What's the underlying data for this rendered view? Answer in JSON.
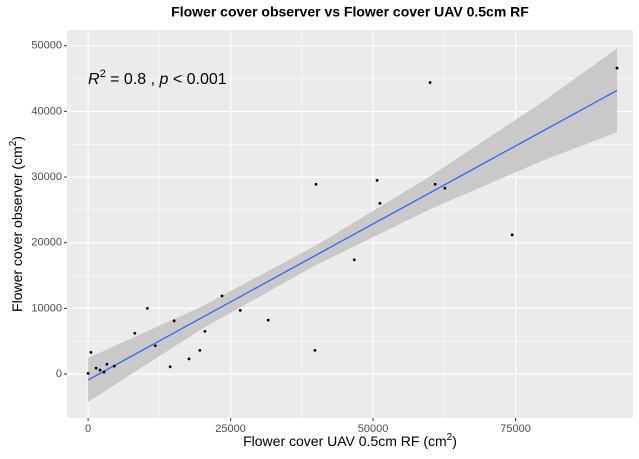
{
  "chart_data": {
    "type": "scatter",
    "title": "Flower cover observer vs Flower cover UAV 0.5cm RF",
    "x_label": {
      "text": "Flower cover UAV 0.5cm RF (cm",
      "sup": "2",
      "end": ")"
    },
    "y_label": {
      "text": "Flower cover observer (cm",
      "sup": "2",
      "end": ")"
    },
    "annotation": {
      "r": "R",
      "sup": "2",
      "mid": " = 0.8 , ",
      "p": "p",
      "end": " < 0.001"
    },
    "x": [
      0,
      500,
      1400,
      2100,
      2800,
      3300,
      4600,
      8200,
      10400,
      11800,
      14400,
      15100,
      17700,
      19600,
      20500,
      23500,
      26700,
      31600,
      39800,
      40000,
      46700,
      50700,
      51200,
      60000,
      60900,
      62600,
      74400,
      92800
    ],
    "values": [
      100,
      3300,
      900,
      600,
      300,
      1500,
      1200,
      6200,
      10000,
      4300,
      1100,
      8100,
      2300,
      3600,
      6500,
      11900,
      9700,
      8200,
      3600,
      28900,
      17400,
      29500,
      26000,
      44400,
      28900,
      28300,
      21200,
      46600
    ],
    "point_color": "#000000",
    "fit": {
      "color": "#3366FF",
      "x": [
        0,
        92800
      ],
      "y": [
        -900,
        43200
      ]
    },
    "band": {
      "color": "#c9c9c9",
      "x": [
        0,
        20000,
        40000,
        60000,
        80000,
        92800
      ],
      "lower": [
        -4250,
        6900,
        16600,
        25100,
        32600,
        36800
      ],
      "upper": [
        2450,
        10300,
        19600,
        30100,
        41600,
        49600
      ]
    },
    "xlim": [
      -3700,
      95600
    ],
    "ylim": [
      -6700,
      52400
    ],
    "xticks": [
      0,
      25000,
      50000,
      75000
    ],
    "yticks": [
      0,
      10000,
      20000,
      30000,
      40000,
      50000
    ],
    "grid": true
  }
}
